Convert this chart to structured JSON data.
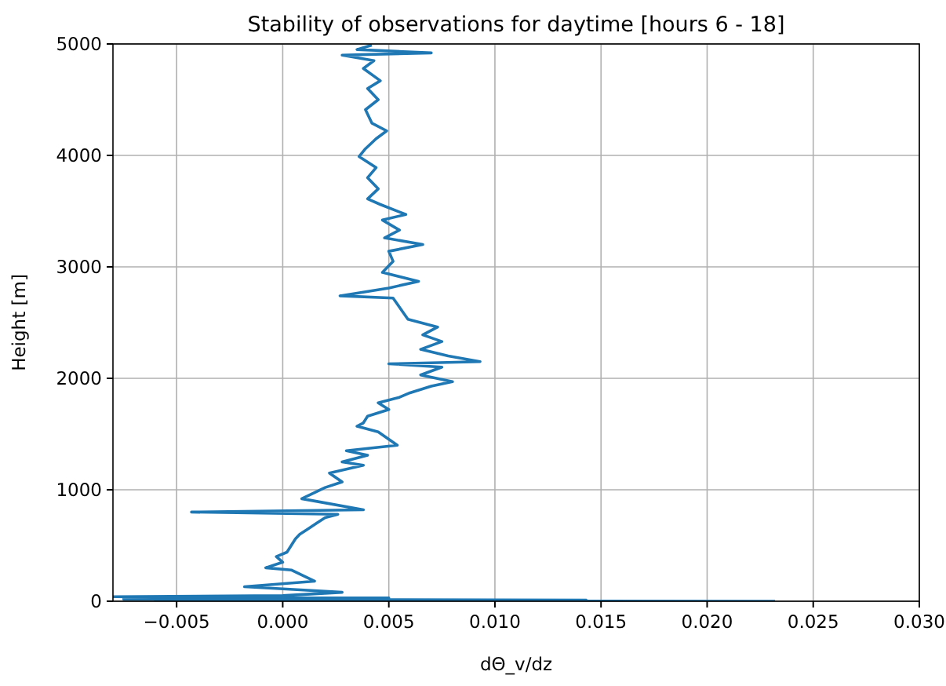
{
  "chart_data": {
    "type": "line",
    "title": "Stability of observations for daytime [hours 6 - 18]",
    "xlabel": "dΘ_v/dz",
    "ylabel": "Height [m]",
    "xlim": [
      -0.008,
      0.03
    ],
    "xticks": [
      {
        "value": -0.005,
        "label": "−0.005"
      },
      {
        "value": 0,
        "label": "0.000"
      },
      {
        "value": 0.005,
        "label": "0.005"
      },
      {
        "value": 0.01,
        "label": "0.010"
      },
      {
        "value": 0.015,
        "label": "0.015"
      },
      {
        "value": 0.02,
        "label": "0.020"
      },
      {
        "value": 0.025,
        "label": "0.025"
      },
      {
        "value": 0.03,
        "label": "0.030"
      }
    ],
    "ylim": [
      0,
      5000
    ],
    "yticks": [
      0,
      1000,
      2000,
      3000,
      4000,
      5000
    ],
    "grid": true,
    "marker": "none",
    "line_style": "solid",
    "series": [
      {
        "color": "#1f77b4",
        "x": [
          0.0042,
          0.0035,
          0.007,
          0.0028,
          0.0043,
          0.0038,
          0.0046,
          0.004,
          0.0045,
          0.0039,
          0.0042,
          0.0049,
          0.0044,
          0.0039,
          0.0036,
          0.0044,
          0.004,
          0.0045,
          0.004,
          0.0046,
          0.0058,
          0.0047,
          0.0055,
          0.0048,
          0.0066,
          0.005,
          0.0052,
          0.0047,
          0.0064,
          0.005,
          0.0027,
          0.0052,
          0.0059,
          0.0073,
          0.0066,
          0.0075,
          0.0065,
          0.0078,
          0.0093,
          0.005,
          0.0075,
          0.0065,
          0.008,
          0.007,
          0.006,
          0.0055,
          0.0045,
          0.005,
          0.004,
          0.0038,
          0.0035,
          0.0045,
          0.0054,
          0.003,
          0.004,
          0.0028,
          0.0038,
          0.0022,
          0.0028,
          0.002,
          0.0009,
          0.0038,
          -0.0043,
          0.0026,
          0.002,
          0.0016,
          0.0012,
          0.0008,
          0.0006,
          0.0004,
          0.0002,
          -0.0003,
          0.0,
          -0.0008,
          0.0004,
          0.0015,
          -0.0018,
          0.001,
          0.0028,
          0.0,
          -0.008,
          0.005,
          -0.0075,
          0.0143,
          -0.006,
          0.0232
        ],
        "values": [
          4990,
          4950,
          4920,
          4900,
          4850,
          4780,
          4670,
          4600,
          4500,
          4410,
          4290,
          4220,
          4150,
          4060,
          3990,
          3890,
          3800,
          3700,
          3610,
          3560,
          3470,
          3420,
          3330,
          3260,
          3200,
          3140,
          3050,
          2950,
          2870,
          2810,
          2740,
          2720,
          2530,
          2460,
          2390,
          2330,
          2260,
          2200,
          2150,
          2130,
          2100,
          2030,
          1970,
          1930,
          1870,
          1830,
          1780,
          1720,
          1660,
          1600,
          1570,
          1520,
          1400,
          1350,
          1310,
          1250,
          1220,
          1150,
          1070,
          1020,
          920,
          820,
          800,
          780,
          750,
          700,
          650,
          600,
          560,
          500,
          440,
          400,
          350,
          300,
          280,
          180,
          130,
          100,
          80,
          50,
          40,
          30,
          20,
          10,
          5,
          0
        ]
      }
    ]
  }
}
